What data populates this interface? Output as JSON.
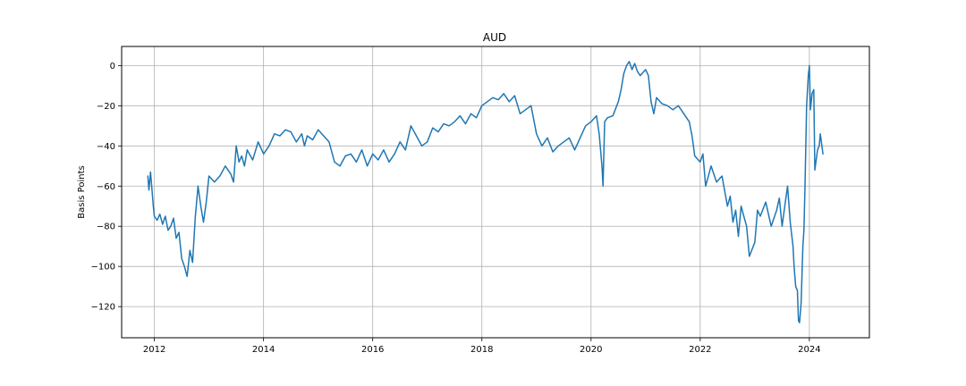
{
  "chart_data": {
    "type": "line",
    "title": "AUD",
    "xlabel": "",
    "ylabel": "Basis Points",
    "xlim": [
      2011.4,
      2025.1
    ],
    "ylim": [
      -135.5,
      9.5
    ],
    "grid": true,
    "x_ticks": [
      2012,
      2014,
      2016,
      2018,
      2020,
      2022,
      2024
    ],
    "x_tick_labels": [
      "2012",
      "2014",
      "2016",
      "2018",
      "2020",
      "2022",
      "2024"
    ],
    "y_ticks": [
      0,
      -20,
      -40,
      -60,
      -80,
      -100,
      -120
    ],
    "y_tick_labels": [
      "0",
      "−20",
      "−40",
      "−60",
      "−80",
      "−100",
      "−120"
    ],
    "series": [
      {
        "color": "#1f77b4",
        "x": [
          2011.88,
          2011.9,
          2011.93,
          2011.95,
          2011.98,
          2012.0,
          2012.05,
          2012.1,
          2012.15,
          2012.2,
          2012.25,
          2012.3,
          2012.35,
          2012.4,
          2012.45,
          2012.5,
          2012.55,
          2012.6,
          2012.65,
          2012.7,
          2012.75,
          2012.8,
          2012.85,
          2012.9,
          2012.95,
          2013.0,
          2013.1,
          2013.2,
          2013.3,
          2013.4,
          2013.45,
          2013.5,
          2013.55,
          2013.6,
          2013.65,
          2013.7,
          2013.8,
          2013.9,
          2014.0,
          2014.1,
          2014.2,
          2014.3,
          2014.4,
          2014.5,
          2014.6,
          2014.7,
          2014.75,
          2014.8,
          2014.9,
          2015.0,
          2015.1,
          2015.2,
          2015.3,
          2015.4,
          2015.5,
          2015.6,
          2015.7,
          2015.8,
          2015.9,
          2016.0,
          2016.1,
          2016.2,
          2016.3,
          2016.4,
          2016.5,
          2016.6,
          2016.7,
          2016.8,
          2016.9,
          2017.0,
          2017.1,
          2017.2,
          2017.3,
          2017.4,
          2017.5,
          2017.6,
          2017.7,
          2017.8,
          2017.9,
          2018.0,
          2018.1,
          2018.2,
          2018.3,
          2018.4,
          2018.5,
          2018.6,
          2018.7,
          2018.8,
          2018.9,
          2019.0,
          2019.1,
          2019.2,
          2019.3,
          2019.4,
          2019.5,
          2019.6,
          2019.7,
          2019.8,
          2019.9,
          2020.0,
          2020.1,
          2020.15,
          2020.2,
          2020.22,
          2020.25,
          2020.3,
          2020.4,
          2020.5,
          2020.55,
          2020.6,
          2020.65,
          2020.7,
          2020.75,
          2020.8,
          2020.85,
          2020.9,
          2021.0,
          2021.05,
          2021.1,
          2021.15,
          2021.2,
          2021.3,
          2021.4,
          2021.5,
          2021.6,
          2021.7,
          2021.8,
          2021.85,
          2021.9,
          2022.0,
          2022.05,
          2022.1,
          2022.2,
          2022.3,
          2022.4,
          2022.5,
          2022.55,
          2022.6,
          2022.65,
          2022.7,
          2022.75,
          2022.8,
          2022.85,
          2022.9,
          2023.0,
          2023.05,
          2023.1,
          2023.2,
          2023.3,
          2023.4,
          2023.45,
          2023.5,
          2023.55,
          2023.6,
          2023.65,
          2023.7,
          2023.72,
          2023.75,
          2023.78,
          2023.8,
          2023.82,
          2023.85,
          2023.88,
          2023.9,
          2023.92,
          2023.95,
          2023.98,
          2024.0,
          2024.02,
          2024.05,
          2024.08,
          2024.1,
          2024.12,
          2024.15,
          2024.18,
          2024.2,
          2024.22,
          2024.25
        ],
        "values": [
          -55,
          -62,
          -53,
          -60,
          -70,
          -75,
          -77,
          -74,
          -79,
          -75,
          -82,
          -80,
          -76,
          -86,
          -83,
          -96,
          -100,
          -105,
          -92,
          -98,
          -75,
          -60,
          -70,
          -78,
          -68,
          -55,
          -58,
          -55,
          -50,
          -54,
          -58,
          -40,
          -48,
          -45,
          -50,
          -42,
          -47,
          -38,
          -44,
          -40,
          -34,
          -35,
          -32,
          -33,
          -38,
          -34,
          -40,
          -35,
          -37,
          -32,
          -35,
          -38,
          -48,
          -50,
          -45,
          -44,
          -48,
          -42,
          -50,
          -44,
          -47,
          -42,
          -48,
          -44,
          -38,
          -42,
          -30,
          -35,
          -40,
          -38,
          -31,
          -33,
          -29,
          -30,
          -28,
          -25,
          -29,
          -24,
          -26,
          -20,
          -18,
          -16,
          -17,
          -14,
          -18,
          -15,
          -24,
          -22,
          -20,
          -34,
          -40,
          -36,
          -43,
          -40,
          -38,
          -36,
          -42,
          -36,
          -30,
          -28,
          -25,
          -34,
          -50,
          -60,
          -28,
          -26,
          -25,
          -18,
          -12,
          -4,
          0,
          2,
          -2,
          1,
          -3,
          -5,
          -2,
          -5,
          -18,
          -24,
          -16,
          -19,
          -20,
          -22,
          -20,
          -24,
          -28,
          -35,
          -45,
          -48,
          -44,
          -60,
          -50,
          -58,
          -55,
          -70,
          -65,
          -78,
          -72,
          -85,
          -70,
          -75,
          -80,
          -95,
          -88,
          -72,
          -75,
          -68,
          -80,
          -72,
          -66,
          -80,
          -70,
          -60,
          -78,
          -90,
          -100,
          -110,
          -112,
          -127,
          -128,
          -118,
          -90,
          -82,
          -60,
          -20,
          -5,
          0,
          -22,
          -14,
          -12,
          -52,
          -48,
          -42,
          -40,
          -34,
          -38,
          -44
        ]
      }
    ]
  }
}
